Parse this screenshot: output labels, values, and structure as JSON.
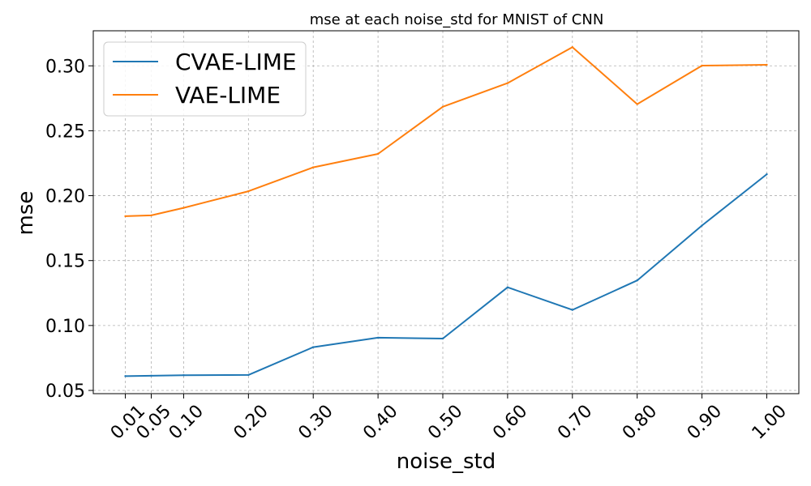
{
  "chart_data": {
    "type": "line",
    "title": "mse at each noise_std for MNIST of CNN",
    "xlabel": "noise_std",
    "ylabel": "mse",
    "x": [
      0.01,
      0.05,
      0.1,
      0.2,
      0.3,
      0.4,
      0.5,
      0.6,
      0.7,
      0.8,
      0.9,
      1.0
    ],
    "x_tick_labels": [
      "0.01",
      "0.05",
      "0.10",
      "0.20",
      "0.30",
      "0.40",
      "0.50",
      "0.60",
      "0.70",
      "0.80",
      "0.90",
      "1.00"
    ],
    "y_ticks": [
      0.05,
      0.1,
      0.15,
      0.2,
      0.25,
      0.3
    ],
    "y_tick_labels": [
      "0.05",
      "0.10",
      "0.15",
      "0.20",
      "0.25",
      "0.30"
    ],
    "xlim": [
      -0.0395,
      1.0495
    ],
    "ylim": [
      0.0475,
      0.327
    ],
    "grid": true,
    "legend_position": "top-left",
    "series": [
      {
        "name": "CVAE-LIME",
        "color": "#1f77b4",
        "values": [
          0.061,
          0.0613,
          0.0617,
          0.0619,
          0.0833,
          0.0906,
          0.0899,
          0.1294,
          0.112,
          0.1347,
          0.177,
          0.2165
        ]
      },
      {
        "name": "VAE-LIME",
        "color": "#ff7f0e",
        "values": [
          0.1842,
          0.1848,
          0.1906,
          0.2034,
          0.2218,
          0.2322,
          0.2685,
          0.2867,
          0.3144,
          0.2705,
          0.3002,
          0.3008
        ]
      }
    ]
  }
}
